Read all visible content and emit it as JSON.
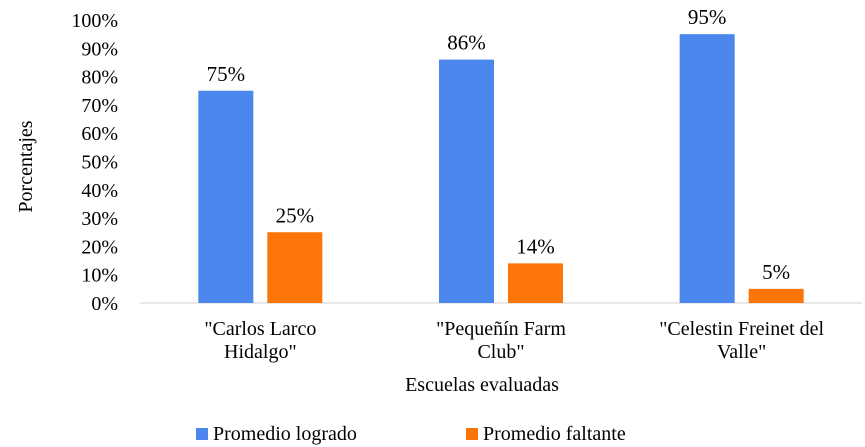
{
  "chart_data": {
    "type": "bar",
    "title": "",
    "xlabel": "Escuelas evaluadas",
    "ylabel": "Porcentajes",
    "ylim": [
      0,
      100
    ],
    "y_ticks": [
      "0%",
      "10%",
      "20%",
      "30%",
      "40%",
      "50%",
      "60%",
      "70%",
      "80%",
      "90%",
      "100%"
    ],
    "grid": false,
    "legend_position": "bottom",
    "categories": [
      [
        "\"Carlos Larco",
        "Hidalgo\""
      ],
      [
        "\"Pequeñín Farm",
        "Club\""
      ],
      [
        "\"Celestin Freinet del",
        "Valle\""
      ]
    ],
    "series": [
      {
        "name": "Promedio logrado",
        "color": "#4a86ec",
        "values": [
          75,
          86,
          95
        ],
        "labels": [
          "75%",
          "86%",
          "95%"
        ]
      },
      {
        "name": "Promedio faltante",
        "color": "#fb7508",
        "values": [
          25,
          14,
          5
        ],
        "labels": [
          "25%",
          "14%",
          "5%"
        ]
      }
    ]
  }
}
